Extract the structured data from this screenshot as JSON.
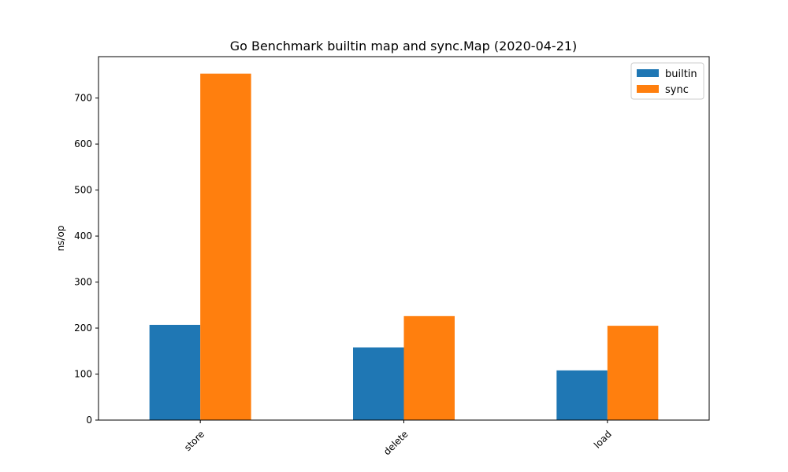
{
  "chart_data": {
    "type": "bar",
    "title": "Go Benchmark builtin map and sync.Map (2020-04-21)",
    "xlabel": "",
    "ylabel": "ns/op",
    "categories": [
      "store",
      "delete",
      "load"
    ],
    "series": [
      {
        "name": "builtin",
        "color": "#1f77b4",
        "values": [
          207,
          158,
          108
        ]
      },
      {
        "name": "sync",
        "color": "#ff7f0e",
        "values": [
          753,
          226,
          205
        ]
      }
    ],
    "ylim": [
      0,
      790
    ],
    "yticks": [
      0,
      100,
      200,
      300,
      400,
      500,
      600,
      700
    ],
    "legend_position": "top-right",
    "grid": false
  }
}
